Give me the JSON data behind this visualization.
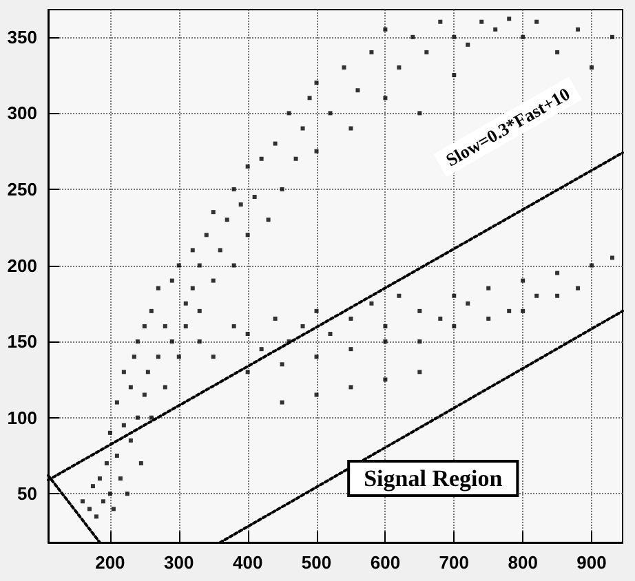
{
  "chart_data": {
    "type": "scatter",
    "xlim": [
      110,
      945
    ],
    "ylim": [
      18,
      368
    ],
    "xticks": [
      200,
      300,
      400,
      500,
      600,
      700,
      800,
      900
    ],
    "yticks": [
      50,
      100,
      150,
      200,
      250,
      300,
      350
    ],
    "grid": true,
    "marker": "square",
    "annotations": [
      "Slow=0.3*Fast+10",
      "Signal Region"
    ],
    "series": [
      {
        "color": "#000000",
        "x": [
          160,
          170,
          175,
          180,
          185,
          190,
          195,
          200,
          200,
          205,
          210,
          210,
          215,
          220,
          220,
          225,
          230,
          230,
          235,
          240,
          240,
          245,
          250,
          250,
          255,
          260,
          260,
          270,
          270,
          280,
          280,
          290,
          290,
          300,
          300,
          310,
          310,
          320,
          320,
          330,
          330,
          340,
          350,
          350,
          360,
          370,
          380,
          380,
          390,
          400,
          400,
          410,
          420,
          430,
          440,
          450,
          460,
          470,
          480,
          490,
          500,
          500,
          520,
          540,
          550,
          560,
          580,
          600,
          600,
          620,
          640,
          650,
          660,
          680,
          700,
          700,
          720,
          740,
          760,
          780,
          800,
          820,
          850,
          880,
          900,
          930,
          330,
          350,
          380,
          400,
          420,
          440,
          460,
          480,
          500,
          520,
          550,
          580,
          600,
          620,
          650,
          680,
          700,
          720,
          750,
          780,
          800,
          820,
          850,
          880,
          900,
          930,
          400,
          450,
          500,
          550,
          600,
          650,
          700,
          750,
          800,
          850,
          450,
          500,
          550,
          600,
          650
        ],
        "values": [
          45,
          40,
          55,
          35,
          60,
          45,
          70,
          50,
          90,
          40,
          75,
          110,
          60,
          95,
          130,
          50,
          85,
          120,
          140,
          100,
          150,
          70,
          115,
          160,
          130,
          100,
          170,
          140,
          185,
          120,
          160,
          150,
          190,
          140,
          200,
          175,
          160,
          185,
          210,
          200,
          170,
          220,
          190,
          235,
          210,
          230,
          200,
          250,
          240,
          220,
          265,
          245,
          270,
          230,
          280,
          250,
          300,
          270,
          290,
          310,
          275,
          320,
          300,
          330,
          290,
          315,
          340,
          310,
          355,
          330,
          350,
          300,
          340,
          360,
          325,
          350,
          345,
          360,
          355,
          362,
          350,
          360,
          340,
          355,
          330,
          350,
          150,
          140,
          160,
          155,
          145,
          165,
          150,
          160,
          170,
          155,
          165,
          175,
          160,
          180,
          170,
          165,
          180,
          175,
          185,
          170,
          190,
          180,
          195,
          185,
          200,
          205,
          130,
          135,
          140,
          145,
          150,
          150,
          160,
          165,
          170,
          180,
          110,
          115,
          120,
          125,
          130
        ]
      },
      {
        "type": "line",
        "color": "#000000",
        "line_style": "dotted",
        "marker": "none",
        "x": [
          110,
          945
        ],
        "values": [
          59,
          274
        ]
      },
      {
        "type": "line",
        "color": "#000000",
        "line_style": "dotted",
        "marker": "none",
        "x": [
          360,
          945
        ],
        "values": [
          18,
          170
        ]
      },
      {
        "type": "line",
        "color": "#000000",
        "line_style": "dotted",
        "marker": "none",
        "x": [
          110,
          185
        ],
        "values": [
          62,
          18
        ]
      }
    ]
  }
}
